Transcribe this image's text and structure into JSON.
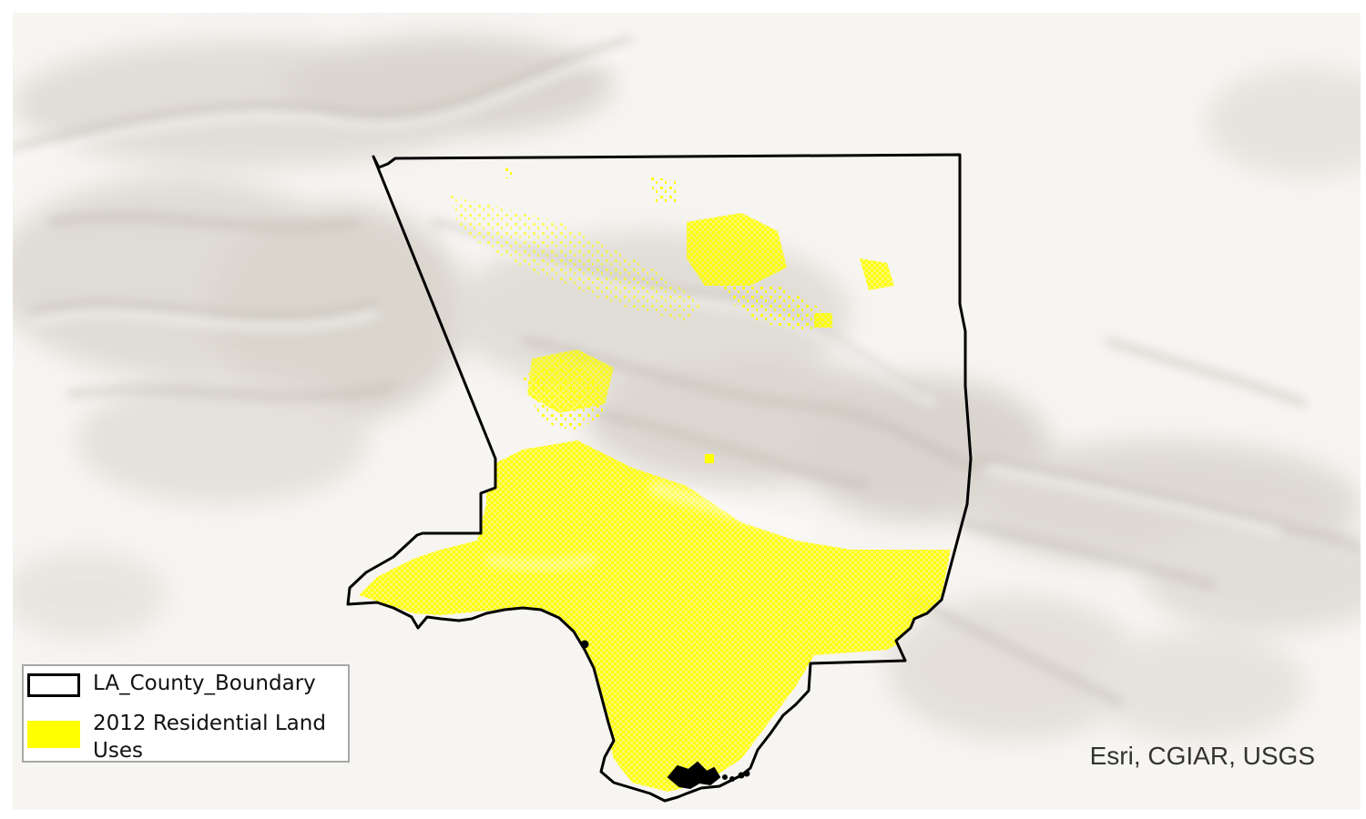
{
  "map": {
    "basemap": "world-hillshade",
    "colors": {
      "background": "#f7f5f2",
      "hillshade_dark": "#bdb8b0",
      "hillshade_light": "#ffffff",
      "boundary_stroke": "#000000",
      "residential_fill": "#ffff00"
    }
  },
  "legend": {
    "items": [
      {
        "label": "LA_County_Boundary",
        "swatch": "outline",
        "color": "#000000"
      },
      {
        "label": "2012 Residential Land Uses",
        "swatch": "fill",
        "color": "#ffff00"
      }
    ]
  },
  "attribution": "Esri, CGIAR, USGS"
}
